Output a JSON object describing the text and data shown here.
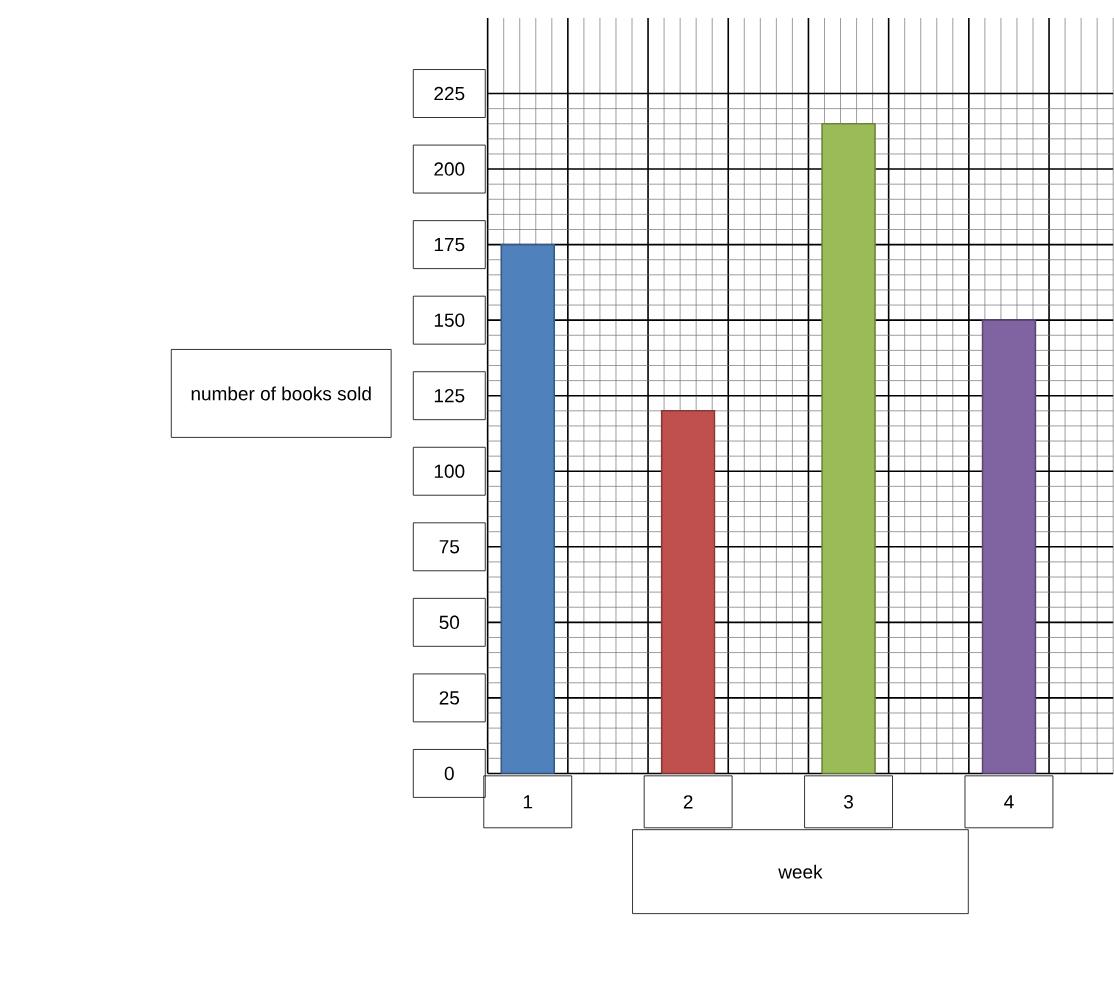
{
  "chart_data": {
    "type": "bar",
    "xlabel": "week",
    "ylabel": "number of books sold",
    "categories": [
      "1",
      "2",
      "3",
      "4"
    ],
    "values": [
      175,
      120,
      215,
      150
    ],
    "colors": [
      "#4f81bd",
      "#c0504d",
      "#9bbb59",
      "#8064a2"
    ],
    "ylim": [
      0,
      250
    ],
    "yticks": [
      0,
      25,
      50,
      75,
      100,
      125,
      150,
      175,
      200,
      225
    ],
    "grid": true
  }
}
